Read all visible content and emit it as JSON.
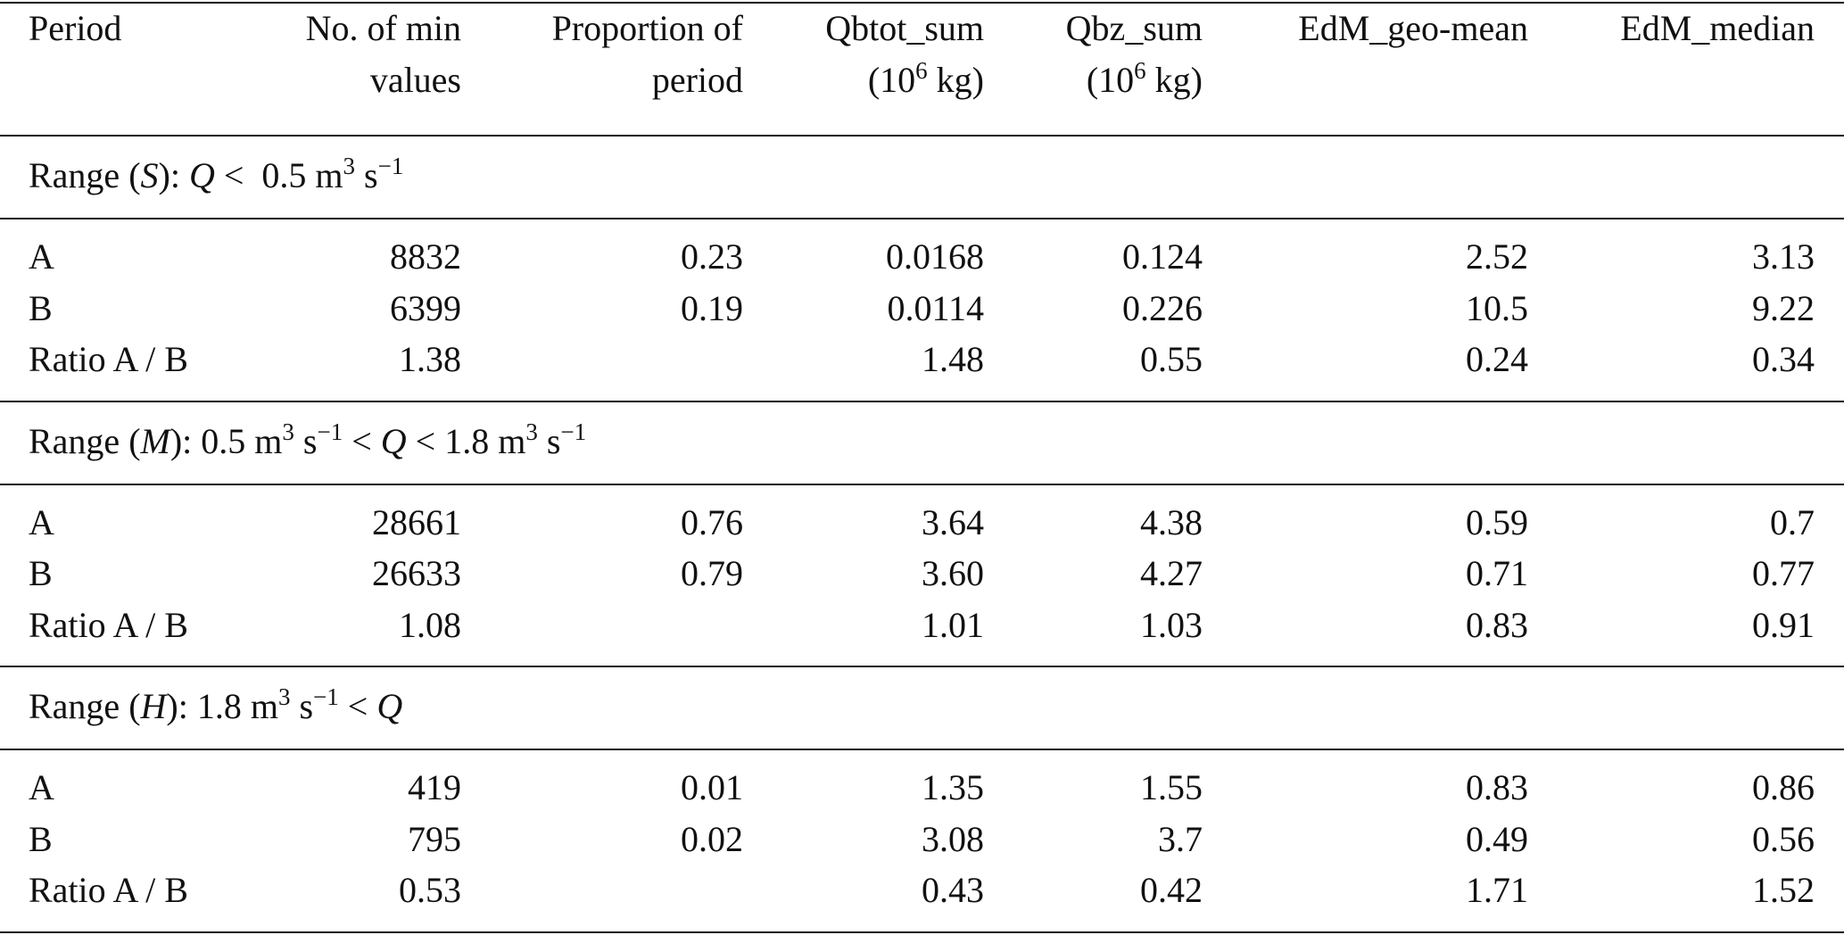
{
  "table": {
    "columns": [
      {
        "lines": [
          "Period"
        ]
      },
      {
        "lines": [
          "No. of min",
          "values"
        ]
      },
      {
        "lines": [
          "Proportion of",
          "period"
        ]
      },
      {
        "lines": [
          "Qbtot_sum",
          [
            {
              "text": "(10"
            },
            {
              "text": "6",
              "sup": true
            },
            {
              "text": " kg)"
            }
          ]
        ]
      },
      {
        "lines": [
          "Qbz_sum",
          [
            {
              "text": "(10"
            },
            {
              "text": "6",
              "sup": true
            },
            {
              "text": " kg)"
            }
          ]
        ]
      },
      {
        "lines": [
          "EdM_geo-mean"
        ]
      },
      {
        "lines": [
          "EdM_median"
        ]
      }
    ],
    "sections": [
      {
        "label": [
          {
            "text": "Range ("
          },
          {
            "text": "S",
            "italic": true
          },
          {
            "text": "): "
          },
          {
            "text": "Q",
            "italic": true
          },
          {
            "text": " <  0.5 m"
          },
          {
            "text": "3",
            "sup": true
          },
          {
            "text": " s"
          },
          {
            "text": "−1",
            "sup": true
          }
        ],
        "rows": [
          [
            "A",
            "8832",
            "0.23",
            "0.0168",
            "0.124",
            "2.52",
            "3.13"
          ],
          [
            "B",
            "6399",
            "0.19",
            "0.0114",
            "0.226",
            "10.5",
            "9.22"
          ],
          [
            "Ratio A / B",
            "1.38",
            null,
            "1.48",
            "0.55",
            "0.24",
            "0.34"
          ]
        ]
      },
      {
        "label": [
          {
            "text": "Range ("
          },
          {
            "text": "M",
            "italic": true
          },
          {
            "text": "): 0.5 m"
          },
          {
            "text": "3",
            "sup": true
          },
          {
            "text": " s"
          },
          {
            "text": "−1",
            "sup": true
          },
          {
            "text": " < "
          },
          {
            "text": "Q",
            "italic": true
          },
          {
            "text": " < 1.8 m"
          },
          {
            "text": "3",
            "sup": true
          },
          {
            "text": " s"
          },
          {
            "text": "−1",
            "sup": true
          }
        ],
        "rows": [
          [
            "A",
            "28661",
            "0.76",
            "3.64",
            "4.38",
            "0.59",
            "0.7"
          ],
          [
            "B",
            "26633",
            "0.79",
            "3.60",
            "4.27",
            "0.71",
            "0.77"
          ],
          [
            "Ratio A / B",
            "1.08",
            null,
            "1.01",
            "1.03",
            "0.83",
            "0.91"
          ]
        ]
      },
      {
        "label": [
          {
            "text": "Range ("
          },
          {
            "text": "H",
            "italic": true
          },
          {
            "text": "): 1.8 m"
          },
          {
            "text": "3",
            "sup": true
          },
          {
            "text": " s"
          },
          {
            "text": "−1",
            "sup": true
          },
          {
            "text": " < "
          },
          {
            "text": "Q",
            "italic": true
          }
        ],
        "rows": [
          [
            "A",
            "419",
            "0.01",
            "1.35",
            "1.55",
            "0.83",
            "0.86"
          ],
          [
            "B",
            "795",
            "0.02",
            "3.08",
            "3.7",
            "0.49",
            "0.56"
          ],
          [
            "Ratio A / B",
            "0.53",
            null,
            "0.43",
            "0.42",
            "1.71",
            "1.52"
          ]
        ]
      }
    ]
  }
}
